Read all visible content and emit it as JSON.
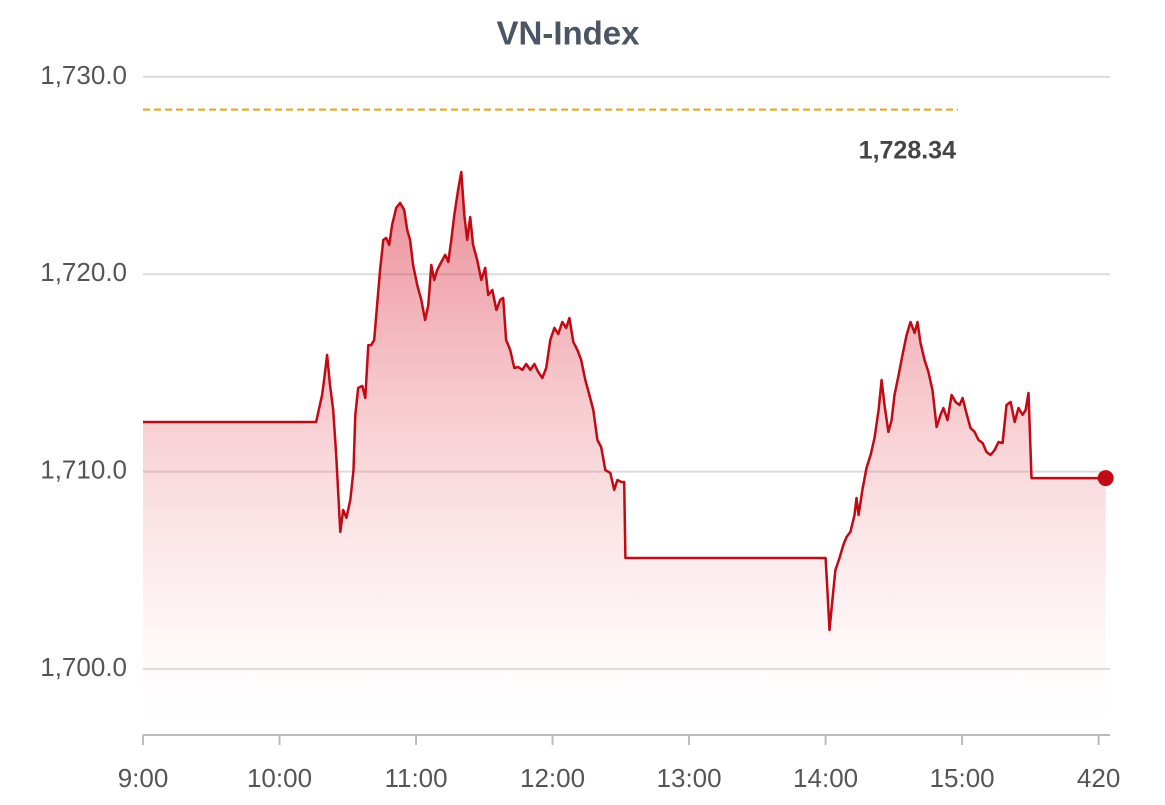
{
  "chart_data": {
    "type": "line",
    "title": "VN-Index",
    "color": "#c00a14",
    "grid": true,
    "reference": {
      "value": 1728.34,
      "label": "1,728.34",
      "color": "#e8a317"
    },
    "xlim": [
      0,
      425
    ],
    "ylim": [
      1696.65,
      1731.11
    ],
    "xticks": [
      {
        "value": 0,
        "label": "9:00"
      },
      {
        "value": 60,
        "label": "10:00"
      },
      {
        "value": 120,
        "label": "11:00"
      },
      {
        "value": 180,
        "label": "12:00"
      },
      {
        "value": 240,
        "label": "13:00"
      },
      {
        "value": 300,
        "label": "14:00"
      },
      {
        "value": 360,
        "label": "15:00"
      },
      420
    ],
    "yticks": [
      {
        "value": 1700,
        "label": "1,700.0"
      },
      {
        "value": 1710,
        "label": "1,710.0"
      },
      {
        "value": 1720,
        "label": "1,720.0"
      },
      {
        "value": 1730,
        "label": "1,730.0"
      }
    ],
    "x": [
      0,
      76.1,
      78.7,
      79.6,
      80.9,
      82.2,
      83.6,
      84.9,
      86.7,
      88.0,
      89.4,
      91.1,
      92.5,
      93.3,
      94.6,
      96.4,
      97.7,
      99.0,
      100.3,
      101.6,
      102.9,
      104.2,
      105.6,
      106.9,
      108.2,
      109.5,
      111.3,
      113.0,
      114.8,
      116.1,
      117.4,
      118.7,
      120.5,
      122.3,
      124.0,
      125.4,
      126.7,
      128.0,
      129.3,
      131.1,
      132.8,
      134.2,
      135.5,
      136.8,
      138.5,
      139.9,
      141.2,
      142.5,
      143.8,
      145.1,
      146.9,
      148.7,
      150.4,
      151.7,
      153.5,
      155.3,
      157.0,
      158.3,
      159.6,
      161.4,
      163.2,
      164.9,
      166.7,
      168.4,
      170.2,
      172.0,
      173.7,
      175.5,
      177.2,
      179.0,
      180.8,
      182.5,
      184.3,
      186.0,
      187.4,
      189.1,
      190.9,
      192.6,
      194.4,
      196.2,
      197.9,
      199.7,
      201.4,
      203.2,
      205.4,
      207.1,
      208.5,
      210.2,
      211.5,
      212.0,
      300.0,
      300.8,
      301.7,
      303.0,
      304.3,
      306.1,
      307.8,
      309.2,
      310.9,
      312.7,
      313.6,
      314.5,
      316.2,
      318.0,
      319.8,
      321.5,
      323.3,
      324.6,
      325.9,
      327.6,
      329.0,
      330.3,
      332.1,
      333.8,
      335.6,
      337.3,
      339.1,
      340.4,
      341.7,
      343.5,
      345.2,
      347.0,
      348.8,
      350.5,
      351.8,
      353.6,
      355.4,
      357.1,
      358.9,
      360.2,
      361.9,
      363.7,
      365.5,
      367.2,
      369.0,
      370.7,
      372.5,
      374.3,
      376.0,
      377.8,
      379.5,
      381.3,
      383.1,
      384.8,
      386.6,
      387.9,
      389.2,
      390.5,
      423.1
    ],
    "values": [
      1712.51,
      1712.51,
      1713.88,
      1714.64,
      1715.91,
      1714.39,
      1713.12,
      1710.84,
      1706.94,
      1708.05,
      1707.65,
      1708.56,
      1710.08,
      1712.87,
      1714.24,
      1714.34,
      1713.73,
      1716.41,
      1716.41,
      1716.67,
      1718.44,
      1720.22,
      1721.74,
      1721.84,
      1721.48,
      1722.5,
      1723.36,
      1723.61,
      1723.26,
      1722.24,
      1721.74,
      1720.47,
      1719.46,
      1718.7,
      1717.68,
      1718.44,
      1720.47,
      1719.71,
      1720.22,
      1720.62,
      1720.98,
      1720.62,
      1721.74,
      1723.0,
      1724.27,
      1725.18,
      1723.0,
      1721.74,
      1722.9,
      1721.48,
      1720.72,
      1719.71,
      1720.32,
      1718.95,
      1719.2,
      1718.19,
      1718.7,
      1718.8,
      1716.67,
      1716.16,
      1715.25,
      1715.3,
      1715.15,
      1715.45,
      1715.15,
      1715.45,
      1715.05,
      1714.74,
      1715.25,
      1716.67,
      1717.28,
      1716.97,
      1717.58,
      1717.28,
      1717.78,
      1716.57,
      1716.16,
      1715.65,
      1714.64,
      1713.88,
      1713.12,
      1711.6,
      1711.24,
      1710.08,
      1709.93,
      1709.07,
      1709.57,
      1709.47,
      1709.47,
      1705.62,
      1705.62,
      1704.0,
      1701.97,
      1703.49,
      1705.01,
      1705.62,
      1706.28,
      1706.68,
      1706.94,
      1707.8,
      1708.66,
      1707.8,
      1709.07,
      1710.18,
      1710.84,
      1711.7,
      1713.12,
      1714.64,
      1713.37,
      1712.01,
      1712.61,
      1713.88,
      1714.89,
      1715.91,
      1716.92,
      1717.58,
      1717.02,
      1717.58,
      1716.52,
      1715.65,
      1715.05,
      1714.13,
      1712.26,
      1712.87,
      1713.22,
      1712.61,
      1713.88,
      1713.53,
      1713.37,
      1713.73,
      1712.97,
      1712.21,
      1712.01,
      1711.6,
      1711.45,
      1710.99,
      1710.84,
      1711.09,
      1711.5,
      1711.45,
      1713.37,
      1713.53,
      1712.51,
      1713.22,
      1712.87,
      1713.12,
      1713.98,
      1709.67,
      1709.67
    ]
  }
}
